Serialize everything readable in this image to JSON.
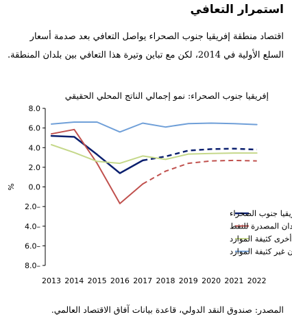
{
  "heading": "استمرار التعافي",
  "intro": "اقتصاد منطقة إفريقيا جنوب الصحراء يواصل التعافي بعد صدمة أسعار السلع الأولية في 2014، لكن مع تباين وتيرة هذا التعافي بين بلدان المنطقة.",
  "source": "المصدر: صندوق النقد الدولي، قاعدة بيانات آفاق الاقتصاد العالمي.",
  "chart_data": {
    "type": "line",
    "title": "إفريقيا جنوب الصحراء: نمو إجمالي الناتج المحلي الحقيقي",
    "ylabel": "%",
    "xlabel": "",
    "x": [
      2013,
      2014,
      2015,
      2016,
      2017,
      2018,
      2019,
      2020,
      2021,
      2022
    ],
    "ylim": [
      -8,
      8
    ],
    "yticks": [
      8,
      6,
      4,
      2,
      0,
      -2,
      -4,
      -6,
      -8
    ],
    "ytick_labels": [
      "8.0",
      "6.0",
      "4.0",
      "2.0",
      "0.0",
      "2.0–",
      "4.0–",
      "6.0–",
      "8.0–"
    ],
    "grid": false,
    "legend_position": "bottom-right",
    "series": [
      {
        "name": "إفريقيا جنوب الصحراء",
        "color": "#0a1f6e",
        "width": 2.5,
        "dashed_from": 2017,
        "values": [
          5.2,
          5.1,
          3.3,
          1.4,
          2.7,
          3.1,
          3.7,
          3.85,
          3.9,
          3.8
        ]
      },
      {
        "name": "البلدان المصدرة للنفط",
        "color": "#c0504d",
        "width": 2,
        "dashed_from": 2017,
        "values": [
          5.4,
          5.85,
          2.4,
          -1.7,
          0.3,
          1.6,
          2.4,
          2.65,
          2.7,
          2.65
        ]
      },
      {
        "name": "بلدان أخرى كثيفة الموارد",
        "color": "#c5d88a",
        "width": 2,
        "values": [
          4.3,
          3.5,
          2.6,
          2.4,
          3.15,
          2.8,
          3.35,
          3.4,
          3.45,
          3.45
        ]
      },
      {
        "name": "بلدان غير كثيفة الموارد",
        "color": "#6f9fd8",
        "width": 2,
        "values": [
          6.4,
          6.6,
          6.6,
          5.6,
          6.5,
          6.1,
          6.45,
          6.5,
          6.45,
          6.35
        ]
      }
    ]
  }
}
